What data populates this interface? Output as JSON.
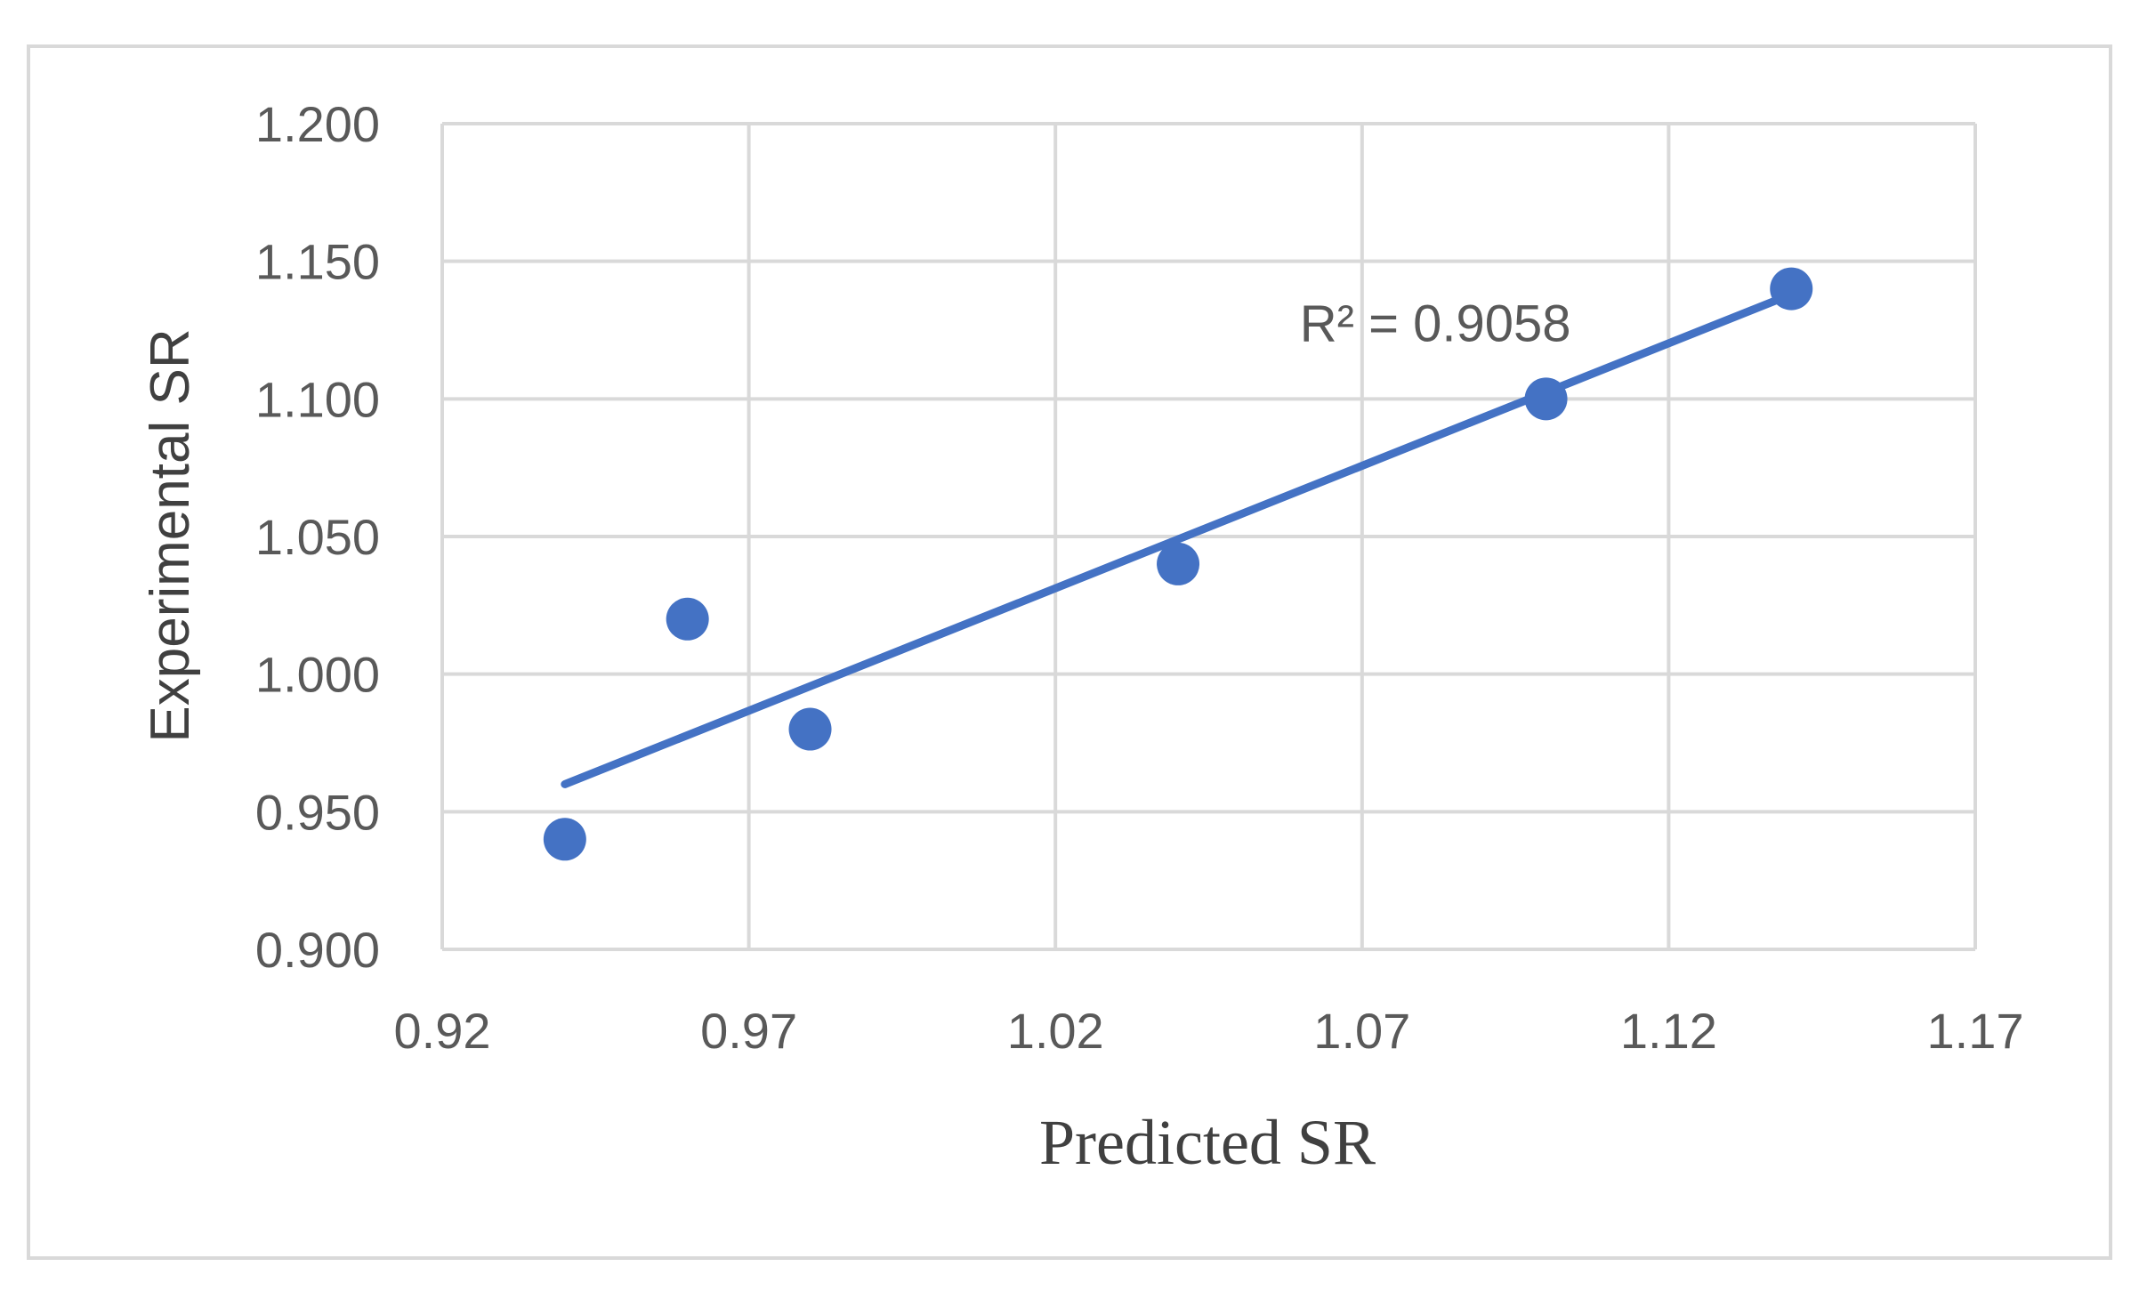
{
  "chart_data": {
    "type": "scatter",
    "title": "",
    "xlabel": "Predicted SR",
    "ylabel": "Experimental SR",
    "xlim": [
      0.92,
      1.17
    ],
    "ylim": [
      0.9,
      1.2
    ],
    "x_ticks": [
      "0.92",
      "0.97",
      "1.02",
      "1.07",
      "1.12",
      "1.17"
    ],
    "y_ticks": [
      "0.900",
      "0.950",
      "1.000",
      "1.050",
      "1.100",
      "1.150",
      "1.200"
    ],
    "grid": true,
    "marker_color": "#4472c4",
    "trendline_color": "#4472c4",
    "grid_color": "#d9d9d9",
    "series": [
      {
        "points": [
          {
            "x": 0.94,
            "y": 0.94
          },
          {
            "x": 0.96,
            "y": 1.02
          },
          {
            "x": 0.98,
            "y": 0.98
          },
          {
            "x": 1.04,
            "y": 1.04
          },
          {
            "x": 1.1,
            "y": 1.1
          },
          {
            "x": 1.14,
            "y": 1.14
          }
        ]
      }
    ],
    "trendline": {
      "type": "linear",
      "x_range": [
        0.94,
        1.14
      ],
      "y_range": [
        0.96,
        1.138
      ]
    },
    "annotations": [
      {
        "text": "R² = 0.9058",
        "x": 1.07,
        "y": 1.128
      }
    ]
  }
}
